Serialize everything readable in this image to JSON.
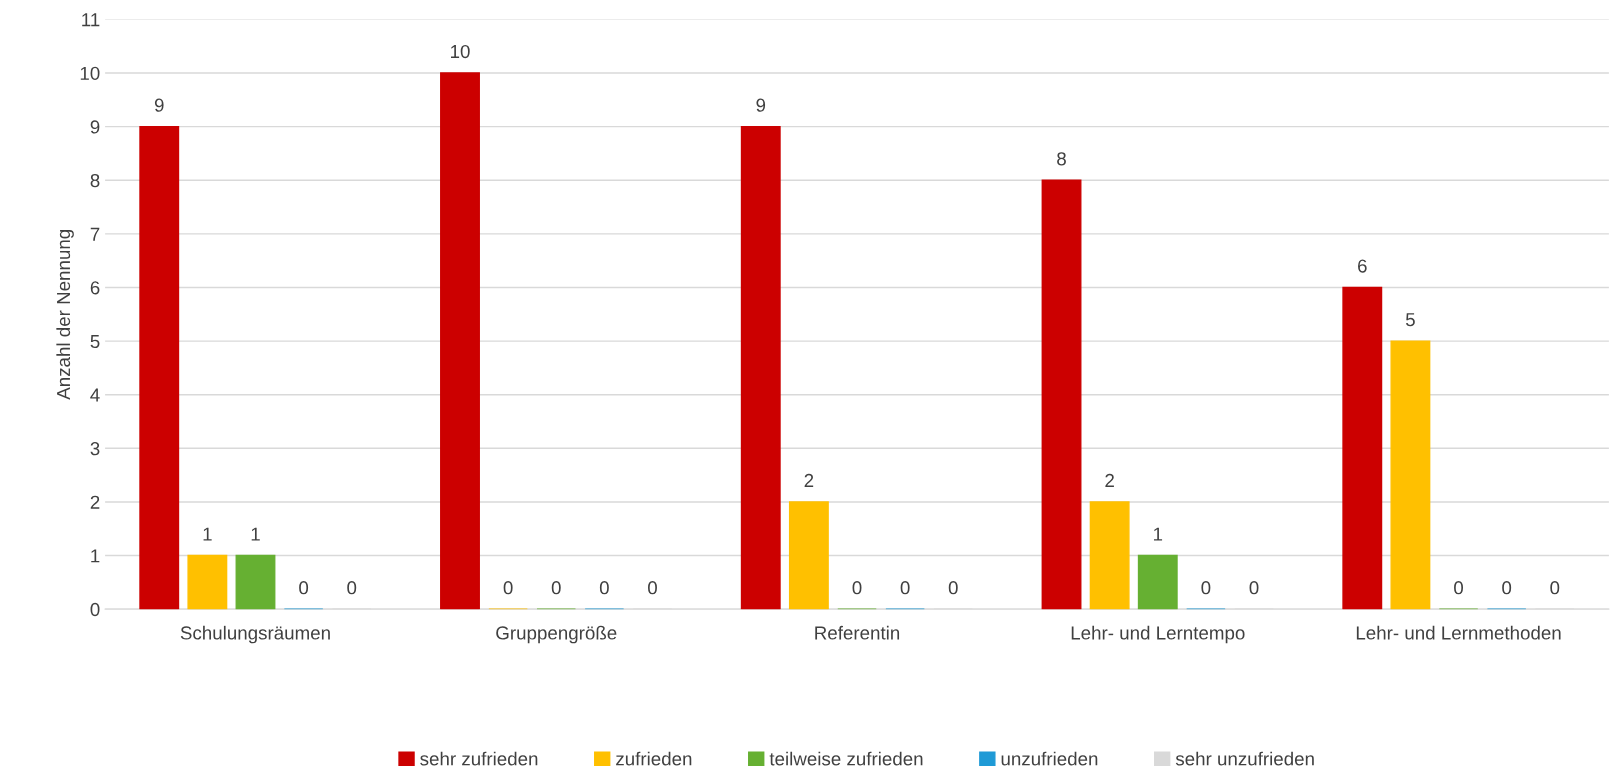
{
  "chart_data": {
    "type": "bar",
    "ylabel": "Anzahl der Nennung",
    "categories": [
      "Schulungsräumen",
      "Gruppengröße",
      "Referentin",
      "Lehr- und Lerntempo",
      "Lehr- und Lernmethoden"
    ],
    "series": [
      {
        "name": "sehr zufrieden",
        "color": "#cc0000",
        "values": [
          9,
          10,
          9,
          8,
          6
        ]
      },
      {
        "name": "zufrieden",
        "color": "#ffc000",
        "values": [
          1,
          0,
          2,
          2,
          5
        ]
      },
      {
        "name": "teilweise zufrieden",
        "color": "#66b032",
        "values": [
          1,
          0,
          0,
          1,
          0
        ]
      },
      {
        "name": "unzufrieden",
        "color": "#1f9ad6",
        "values": [
          0,
          0,
          0,
          0,
          0
        ]
      },
      {
        "name": "sehr unzufrieden",
        "color": "#d9d9d9",
        "values": [
          0,
          0,
          0,
          0,
          0
        ]
      }
    ],
    "ylim": [
      0,
      11
    ],
    "yticks": [
      0,
      1,
      2,
      3,
      4,
      5,
      6,
      7,
      8,
      9,
      10,
      11
    ],
    "grid": "y",
    "legend": "bottom",
    "data_labels": true
  }
}
